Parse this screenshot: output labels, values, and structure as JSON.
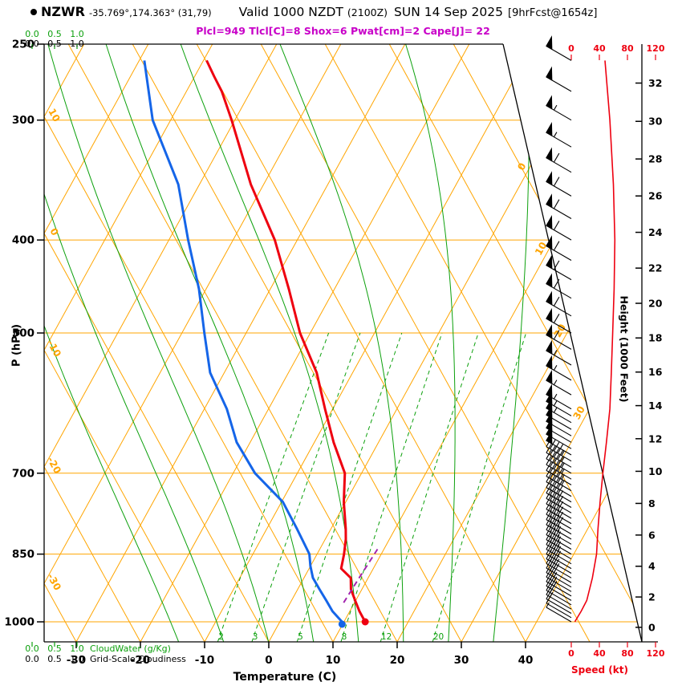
{
  "header": {
    "station": "NZWR",
    "coords": "-35.769°,174.363° (31,79)",
    "valid": "Valid 1000 NZDT",
    "valid_z": "(2100Z)",
    "valid_date": "SUN 14 Sep 2025",
    "fcst": "[9hrFcst@1654z]",
    "params": "Plcl=949 Tlcl[C]=8 Shox=6 Pwat[cm]=2 Cape[J]= 22"
  },
  "axes": {
    "pressure": {
      "label": "P (hPa)",
      "ticks": [
        250,
        300,
        400,
        500,
        700,
        850,
        1000
      ]
    },
    "temperature": {
      "label": "Temperature (C)",
      "ticks": [
        -30,
        -20,
        -10,
        0,
        10,
        20,
        30,
        40
      ]
    },
    "height": {
      "label": "Height (1000 Feet)",
      "ticks": [
        0,
        2,
        4,
        6,
        8,
        10,
        12,
        14,
        16,
        18,
        20,
        22,
        24,
        26,
        28,
        30,
        32
      ]
    },
    "speed": {
      "label": "Speed (kt)",
      "ticks": [
        0,
        40,
        80,
        120
      ]
    }
  },
  "scales": {
    "cloudwater": {
      "title": "CloudWater (g/Kg)",
      "ticks": [
        "0.0",
        "0.5",
        "1.0"
      ]
    },
    "cloudiness": {
      "title": "Grid-Scale Cloudiness",
      "ticks": [
        "0.0",
        "0.5",
        "1.0"
      ]
    }
  },
  "chart_data": {
    "type": "skewt_log_p_sounding",
    "pressure_range_hpa": [
      250,
      1050
    ],
    "pressure_gridlines_hpa": [
      300,
      400,
      500,
      700,
      850,
      1000
    ],
    "temperature_axis_c": {
      "min": -35,
      "max": 40
    },
    "temperature_profile_p_t": [
      [
        1000,
        13.3
      ],
      [
        975,
        11.5
      ],
      [
        950,
        9.9
      ],
      [
        925,
        8.3
      ],
      [
        900,
        7.3
      ],
      [
        880,
        5.0
      ],
      [
        865,
        4.6
      ],
      [
        850,
        4.2
      ],
      [
        820,
        3.2
      ],
      [
        800,
        2.3
      ],
      [
        750,
        -0.3
      ],
      [
        700,
        -2.6
      ],
      [
        650,
        -7.0
      ],
      [
        600,
        -11.2
      ],
      [
        550,
        -15.6
      ],
      [
        500,
        -21.6
      ],
      [
        450,
        -27.1
      ],
      [
        400,
        -33.5
      ],
      [
        350,
        -42.0
      ],
      [
        300,
        -50.5
      ],
      [
        280,
        -54.5
      ],
      [
        270,
        -57.0
      ],
      [
        260,
        -59.5
      ]
    ],
    "dewpoint_profile_p_t": [
      [
        1000,
        9.7
      ],
      [
        975,
        7.3
      ],
      [
        950,
        5.4
      ],
      [
        925,
        3.4
      ],
      [
        900,
        1.4
      ],
      [
        875,
        0.0
      ],
      [
        850,
        -1.2
      ],
      [
        800,
        -5.3
      ],
      [
        750,
        -9.8
      ],
      [
        700,
        -16.6
      ],
      [
        650,
        -22.1
      ],
      [
        600,
        -26.5
      ],
      [
        550,
        -32.2
      ],
      [
        500,
        -36.5
      ],
      [
        450,
        -41.1
      ],
      [
        400,
        -47.0
      ],
      [
        350,
        -53.3
      ],
      [
        300,
        -62.8
      ],
      [
        260,
        -69.2
      ]
    ],
    "parcel_path_p_t": [
      [
        955,
        8.3
      ],
      [
        900,
        8.6
      ],
      [
        870,
        8.8
      ],
      [
        840,
        9.0
      ]
    ],
    "wind_speed_profile_p_kt": [
      [
        260,
        48
      ],
      [
        300,
        55
      ],
      [
        350,
        60
      ],
      [
        400,
        62
      ],
      [
        450,
        61
      ],
      [
        500,
        59
      ],
      [
        550,
        57
      ],
      [
        600,
        55
      ],
      [
        650,
        50
      ],
      [
        700,
        45
      ],
      [
        750,
        41
      ],
      [
        800,
        38
      ],
      [
        850,
        36
      ],
      [
        900,
        30
      ],
      [
        950,
        22
      ],
      [
        975,
        14
      ],
      [
        1000,
        5
      ]
    ],
    "wind_barb_direction_deg": 315,
    "surface_temp_marker_c": 13.3,
    "surface_dewpoint_marker_c": 9.7,
    "isotherm_label_values_right": [
      0,
      10,
      20,
      30
    ],
    "dry_adiabat_label_values_left": [
      10,
      0,
      -10,
      -20,
      -30
    ],
    "mixing_ratio_lines_g_kg": [
      2,
      3,
      5,
      8,
      12,
      20
    ],
    "moist_adiabat_surface_temps_c": [
      -14,
      -7,
      0,
      7,
      14,
      21,
      28,
      35
    ],
    "colors": {
      "orange": "#FFA500",
      "green": "#0CA00C",
      "red": "#EE0010",
      "blue": "#1565E8",
      "purple": "#A224AE",
      "magenta": "#C800C8",
      "black": "#000000"
    }
  }
}
